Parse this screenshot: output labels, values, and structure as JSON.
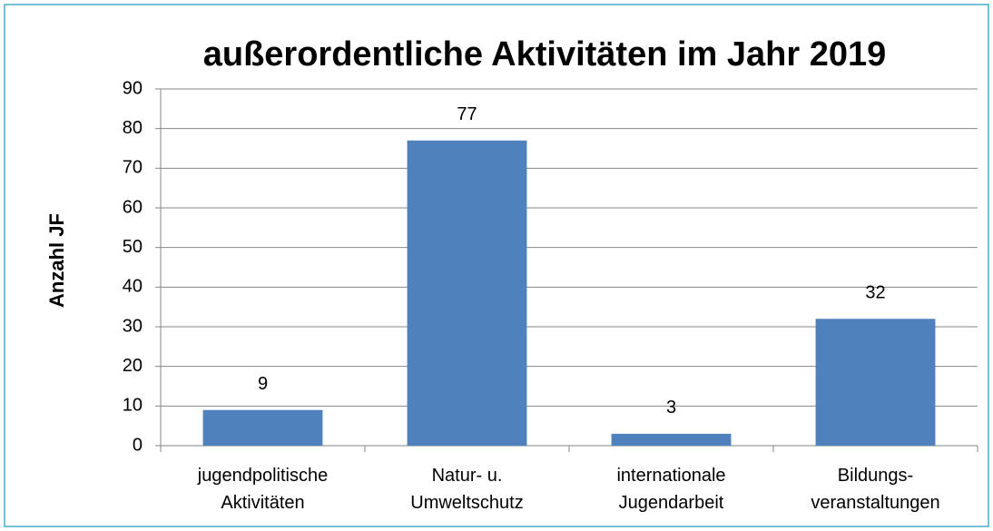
{
  "chart_data": {
    "type": "bar",
    "title": "außerordentliche Aktivitäten im Jahr 2019",
    "y_label": "Anzahl JF",
    "categories": [
      [
        "jugendpolitische",
        "Aktivitäten"
      ],
      [
        "Natur- u.",
        "Umweltschutz"
      ],
      [
        "internationale",
        "Jugendarbeit"
      ],
      [
        "Bildungs-",
        "veranstaltungen"
      ]
    ],
    "values": [
      9,
      77,
      3,
      32
    ],
    "color": "#4f81bd",
    "ylim": [
      0,
      90
    ],
    "yticks": [
      0,
      10,
      20,
      30,
      40,
      50,
      60,
      70,
      80,
      90
    ],
    "grid": true
  }
}
